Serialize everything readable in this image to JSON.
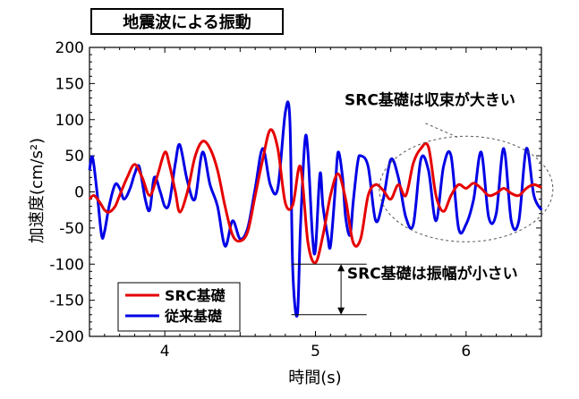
{
  "chart_data": {
    "type": "line",
    "title": "地震波による振動",
    "xlabel": "時間(s)",
    "ylabel": "加速度(cm/s²)",
    "xlim": [
      3.5,
      6.5
    ],
    "ylim": [
      -200,
      200
    ],
    "xticks": [
      4,
      5,
      6
    ],
    "yticks": [
      -200,
      -150,
      -100,
      -50,
      0,
      50,
      100,
      150,
      200
    ],
    "grid": false,
    "legend": "bottom-left",
    "series": [
      {
        "name": "SRC基礎",
        "color": "#e60000",
        "x": [
          3.5,
          3.53,
          3.57,
          3.6,
          3.63,
          3.67,
          3.7,
          3.75,
          3.8,
          3.85,
          3.9,
          3.95,
          4.0,
          4.03,
          4.07,
          4.1,
          4.15,
          4.2,
          4.25,
          4.3,
          4.35,
          4.4,
          4.45,
          4.5,
          4.55,
          4.6,
          4.65,
          4.7,
          4.75,
          4.8,
          4.85,
          4.9,
          4.95,
          5.0,
          5.05,
          5.1,
          5.15,
          5.2,
          5.25,
          5.3,
          5.35,
          5.4,
          5.45,
          5.5,
          5.55,
          5.6,
          5.65,
          5.7,
          5.75,
          5.8,
          5.85,
          5.9,
          5.95,
          6.0,
          6.05,
          6.1,
          6.15,
          6.2,
          6.25,
          6.3,
          6.35,
          6.4,
          6.45,
          6.5
        ],
        "values": [
          -10,
          -5,
          -15,
          -25,
          -28,
          -20,
          -5,
          20,
          38,
          20,
          -5,
          22,
          55,
          38,
          0,
          -28,
          0,
          48,
          70,
          60,
          30,
          -20,
          -60,
          -68,
          -55,
          -5,
          45,
          86,
          60,
          -15,
          -18,
          35,
          -70,
          -98,
          -60,
          -5,
          25,
          -10,
          -70,
          -65,
          -5,
          10,
          2,
          -10,
          10,
          -5,
          40,
          60,
          62,
          -5,
          -27,
          -5,
          10,
          5,
          12,
          5,
          -5,
          -2,
          5,
          -2,
          -5,
          5,
          10,
          6
        ],
        "markers": false
      },
      {
        "name": "従来基礎",
        "color": "#0000e6",
        "x": [
          3.5,
          3.52,
          3.55,
          3.58,
          3.6,
          3.63,
          3.67,
          3.7,
          3.73,
          3.77,
          3.8,
          3.83,
          3.87,
          3.9,
          3.93,
          3.97,
          4.0,
          4.03,
          4.07,
          4.1,
          4.15,
          4.2,
          4.25,
          4.3,
          4.35,
          4.4,
          4.45,
          4.5,
          4.55,
          4.6,
          4.65,
          4.7,
          4.75,
          4.8,
          4.83,
          4.85,
          4.88,
          4.9,
          4.93,
          4.95,
          4.98,
          5.0,
          5.03,
          5.05,
          5.08,
          5.1,
          5.13,
          5.15,
          5.18,
          5.2,
          5.23,
          5.25,
          5.28,
          5.3,
          5.35,
          5.4,
          5.45,
          5.5,
          5.55,
          5.6,
          5.65,
          5.7,
          5.75,
          5.8,
          5.85,
          5.9,
          5.95,
          6.0,
          6.05,
          6.1,
          6.15,
          6.2,
          6.25,
          6.3,
          6.35,
          6.4,
          6.45,
          6.5
        ],
        "values": [
          30,
          48,
          0,
          -60,
          -55,
          -20,
          10,
          5,
          -10,
          5,
          25,
          35,
          -10,
          -25,
          20,
          0,
          -20,
          -15,
          40,
          65,
          15,
          -10,
          55,
          10,
          -20,
          -75,
          -40,
          -65,
          -50,
          5,
          60,
          10,
          5,
          110,
          100,
          -110,
          -170,
          -50,
          70,
          55,
          -60,
          -80,
          25,
          -20,
          -60,
          -75,
          0,
          55,
          20,
          -35,
          -60,
          -15,
          40,
          50,
          35,
          -40,
          -10,
          45,
          20,
          -35,
          -45,
          45,
          30,
          -40,
          35,
          50,
          -50,
          -45,
          -10,
          55,
          -35,
          -30,
          60,
          -40,
          -40,
          60,
          -5,
          -25
        ],
        "markers": false
      }
    ],
    "annotations": [
      {
        "text": "SRC基礎は収束が大きい",
        "type": "dashed-ellipse-callout"
      },
      {
        "text": "SRC基礎は振幅が小さい",
        "type": "range-arrow",
        "y_range": [
          -170,
          -100
        ],
        "x": 5.0
      }
    ]
  },
  "colors": {
    "axis": "#000000",
    "src": "#e60000",
    "conventional": "#0000e6"
  }
}
